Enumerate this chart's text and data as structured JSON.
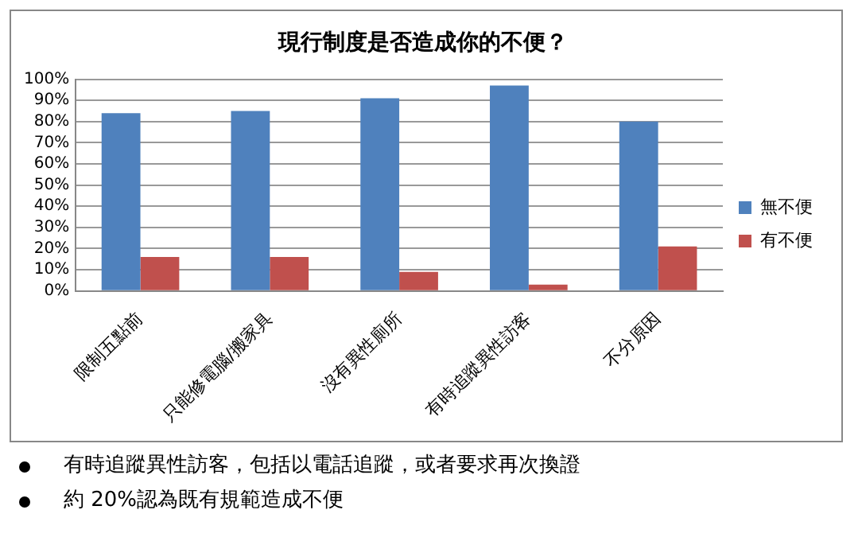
{
  "chart_data": {
    "type": "bar",
    "title": "現行制度是否造成你的不便？",
    "categories": [
      "限制五點前",
      "只能修電腦/搬家具",
      "沒有異性廁所",
      "有時追蹤異性訪客",
      "不分原因"
    ],
    "series": [
      {
        "name": "無不便",
        "color": "#4f81bd",
        "values": [
          84,
          85,
          91,
          97,
          80
        ]
      },
      {
        "name": "有不便",
        "color": "#c0504d",
        "values": [
          16,
          16,
          9,
          3,
          21
        ]
      }
    ],
    "ylim": [
      0,
      100
    ],
    "yticks": [
      {
        "value": 0,
        "label": "0%"
      },
      {
        "value": 10,
        "label": "10%"
      },
      {
        "value": 20,
        "label": "20%"
      },
      {
        "value": 30,
        "label": "30%"
      },
      {
        "value": 40,
        "label": "40%"
      },
      {
        "value": 50,
        "label": "50%"
      },
      {
        "value": 60,
        "label": "60%"
      },
      {
        "value": 70,
        "label": "70%"
      },
      {
        "value": 80,
        "label": "80%"
      },
      {
        "value": 90,
        "label": "90%"
      },
      {
        "value": 100,
        "label": "100%"
      }
    ],
    "grid": "y",
    "legend": "right",
    "annotations": [
      "有時追蹤異性訪客，包括以電話追蹤，或者要求再次換證",
      "約 20%認為既有規範造成不便"
    ]
  }
}
